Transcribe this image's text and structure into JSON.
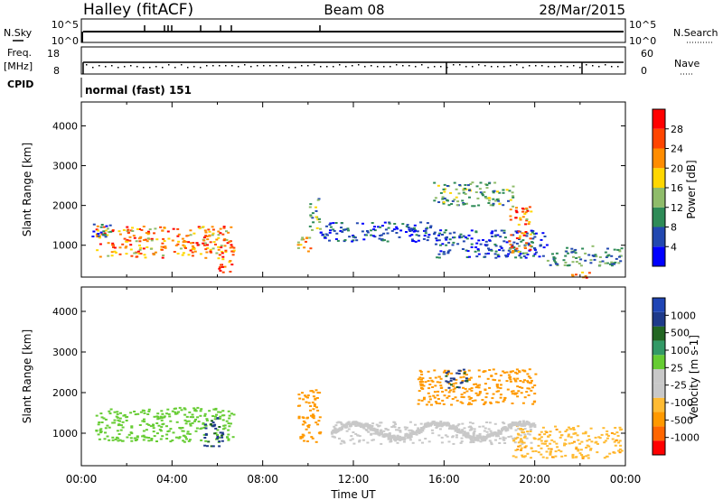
{
  "header": {
    "station": "Halley (fitACF)",
    "beam": "Beam 08",
    "date": "28/Mar/2015"
  },
  "top_panels": {
    "nsky_label": "N.Sky",
    "nsearch_label": "N.Search",
    "nsky_ticks": [
      "10^5",
      "10^0"
    ],
    "nsearch_ticks": [
      "10^5",
      "10^0"
    ],
    "freq_label": "Freq.",
    "freq_unit": "[MHz]",
    "freq_ticks": [
      18,
      8
    ],
    "nave_label": "Nave",
    "nave_ticks": [
      60,
      0
    ],
    "cpid_label": "CPID",
    "cpid_text": "normal (fast) 151"
  },
  "colors": {
    "power_scale": [
      "#0000ff",
      "#2248b0",
      "#2e8b57",
      "#8fbc6a",
      "#ffd700",
      "#ff8c00",
      "#ff4500",
      "#ff0000"
    ],
    "velocity_scale": [
      "#ff0000",
      "#ff6600",
      "#ff9900",
      "#ffbb33",
      "#c8c8c8",
      "#c8c8c8",
      "#66cc33",
      "#339966",
      "#226622",
      "#1e3a8a",
      "#1f45b5",
      "#1f45b5"
    ]
  },
  "chart_data": [
    {
      "type": "heatmap",
      "name": "power",
      "ylabel": "Slant Range [km]",
      "xlabel": "",
      "x_ticks": [
        "00:00",
        "04:00",
        "08:00",
        "12:00",
        "16:00",
        "20:00",
        "00:00"
      ],
      "y_ticks": [
        1000,
        2000,
        3000,
        4000
      ],
      "ylim": [
        200,
        4600
      ],
      "colorbar_label": "Power [dB]",
      "colorbar_ticks": [
        4,
        8,
        12,
        16,
        20,
        24,
        28
      ],
      "colorbar_range": [
        0,
        32
      ],
      "regions": [
        {
          "x": [
            0.6,
            6.7
          ],
          "y": [
            700,
            1500
          ],
          "value": 22
        },
        {
          "x": [
            0.4,
            1.3
          ],
          "y": [
            1200,
            1550
          ],
          "value": 8
        },
        {
          "x": [
            6.0,
            6.7
          ],
          "y": [
            300,
            700
          ],
          "value": 26
        },
        {
          "x": [
            9.5,
            10.1
          ],
          "y": [
            850,
            1300
          ],
          "value": 18
        },
        {
          "x": [
            10.0,
            10.5
          ],
          "y": [
            1400,
            2200
          ],
          "value": 12
        },
        {
          "x": [
            10.5,
            15.5
          ],
          "y": [
            1100,
            1600
          ],
          "value": 6
        },
        {
          "x": [
            15.5,
            19.0
          ],
          "y": [
            2000,
            2600
          ],
          "value": 12
        },
        {
          "x": [
            15.5,
            20.5
          ],
          "y": [
            700,
            1400
          ],
          "value": 6
        },
        {
          "x": [
            18.8,
            19.8
          ],
          "y": [
            800,
            2000
          ],
          "value": 22
        },
        {
          "x": [
            20.5,
            23.8
          ],
          "y": [
            500,
            1000
          ],
          "value": 10
        },
        {
          "x": [
            21.5,
            22.5
          ],
          "y": [
            200,
            350
          ],
          "value": 26
        }
      ]
    },
    {
      "type": "heatmap",
      "name": "velocity",
      "ylabel": "Slant Range [km]",
      "xlabel": "Time UT",
      "x_ticks": [
        "00:00",
        "04:00",
        "08:00",
        "12:00",
        "16:00",
        "20:00",
        "00:00"
      ],
      "y_ticks": [
        1000,
        2000,
        3000,
        4000
      ],
      "ylim": [
        200,
        4600
      ],
      "colorbar_label": "Velocity [m s-1]",
      "colorbar_ticks": [
        1000,
        500,
        100,
        25,
        -25,
        -100,
        -500,
        -1000
      ],
      "regions": [
        {
          "x": [
            0.6,
            6.7
          ],
          "y": [
            800,
            1650
          ],
          "value": 50
        },
        {
          "x": [
            5.3,
            6.2
          ],
          "y": [
            700,
            1400
          ],
          "value": 600
        },
        {
          "x": [
            9.5,
            10.5
          ],
          "y": [
            800,
            2100
          ],
          "value": -200
        },
        {
          "x": [
            11.0,
            19.8
          ],
          "y": [
            750,
            1300
          ],
          "value": 0
        },
        {
          "x": [
            14.8,
            20.0
          ],
          "y": [
            1700,
            2600
          ],
          "value": -150
        },
        {
          "x": [
            16.0,
            17.0
          ],
          "y": [
            2100,
            2600
          ],
          "value": 600
        },
        {
          "x": [
            19.0,
            23.8
          ],
          "y": [
            400,
            1200
          ],
          "value": -80
        }
      ]
    }
  ]
}
